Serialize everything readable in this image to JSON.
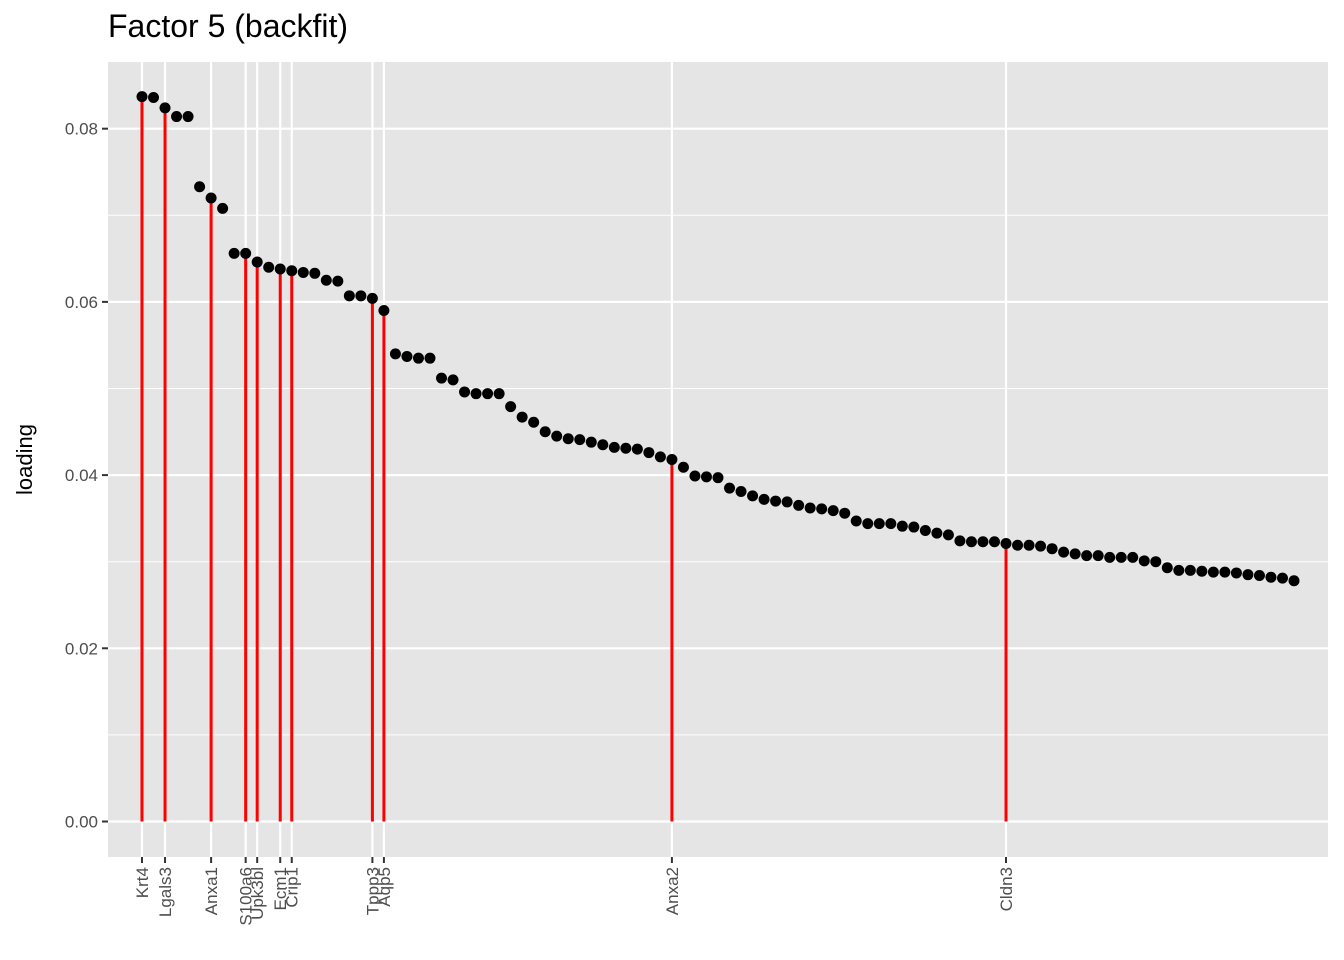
{
  "chart_data": {
    "type": "scatter",
    "title": "Factor 5 (backfit)",
    "xlabel": "",
    "ylabel": "loading",
    "xlim": [
      -1.95,
      103.95
    ],
    "ylim": [
      -0.0041,
      0.0877
    ],
    "y_ticks": [
      "0.00",
      "0.02",
      "0.04",
      "0.06",
      "0.08"
    ],
    "y_tick_values": [
      0,
      0.02,
      0.04,
      0.06,
      0.08
    ],
    "grid": true,
    "legend": "none",
    "colors": {
      "panel": "#e5e5e5",
      "grid": "#ffffff",
      "point": "#000000",
      "highlight": "#ff0000"
    },
    "points": [
      0.0837,
      0.0836,
      0.0824,
      0.0814,
      0.0814,
      0.0733,
      0.072,
      0.0708,
      0.0656,
      0.0656,
      0.0646,
      0.064,
      0.0638,
      0.0636,
      0.0634,
      0.0633,
      0.0625,
      0.0624,
      0.0607,
      0.0607,
      0.0604,
      0.059,
      0.054,
      0.0537,
      0.0535,
      0.0535,
      0.0512,
      0.051,
      0.0496,
      0.0494,
      0.0494,
      0.0494,
      0.0479,
      0.0467,
      0.0461,
      0.045,
      0.0445,
      0.0442,
      0.0441,
      0.0438,
      0.0435,
      0.0432,
      0.0431,
      0.043,
      0.0426,
      0.0421,
      0.0418,
      0.0409,
      0.0399,
      0.0398,
      0.0397,
      0.0385,
      0.0381,
      0.0376,
      0.0372,
      0.037,
      0.0369,
      0.0365,
      0.0362,
      0.0361,
      0.0359,
      0.0356,
      0.0347,
      0.0344,
      0.0344,
      0.0344,
      0.0341,
      0.034,
      0.0336,
      0.0333,
      0.0331,
      0.0324,
      0.0323,
      0.0323,
      0.0323,
      0.0321,
      0.0319,
      0.0319,
      0.0318,
      0.0315,
      0.0311,
      0.0309,
      0.0307,
      0.0307,
      0.0305,
      0.0305,
      0.0305,
      0.0301,
      0.03,
      0.0293,
      0.029,
      0.029,
      0.0289,
      0.0288,
      0.0288,
      0.0287,
      0.0285,
      0.0284,
      0.0282,
      0.0281,
      0.0278
    ],
    "highlights": [
      {
        "gene": "Krt4",
        "index": 0
      },
      {
        "gene": "Lgals3",
        "index": 2
      },
      {
        "gene": "Anxa1",
        "index": 6
      },
      {
        "gene": "S100a6",
        "index": 9
      },
      {
        "gene": "Upk3bl",
        "index": 10
      },
      {
        "gene": "Ecm1",
        "index": 12
      },
      {
        "gene": "Crip1",
        "index": 13
      },
      {
        "gene": "Tppp3",
        "index": 20
      },
      {
        "gene": "Aqp5",
        "index": 21
      },
      {
        "gene": "Anxa2",
        "index": 46
      },
      {
        "gene": "Cldn3",
        "index": 75
      }
    ]
  }
}
